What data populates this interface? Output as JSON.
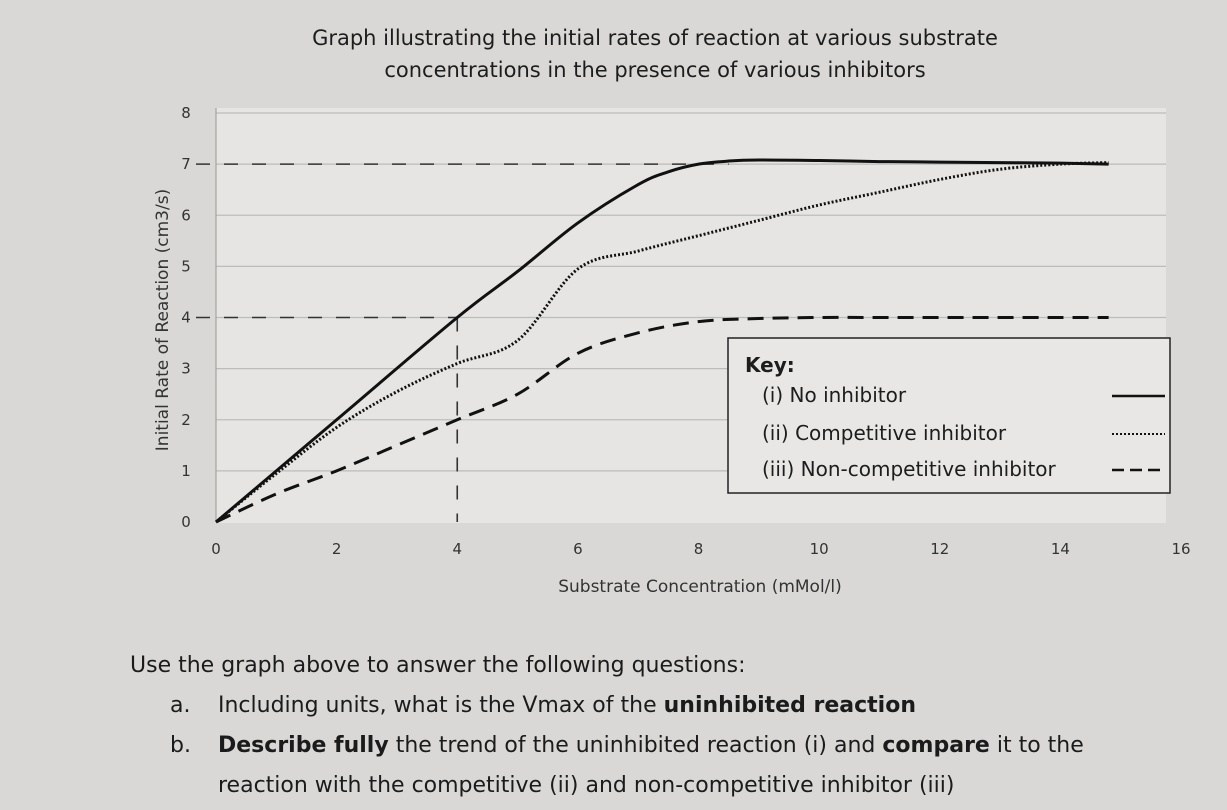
{
  "chart_data": {
    "type": "line",
    "title_line1": "Graph illustrating the initial rates of reaction at various substrate",
    "title_line2": "concentrations in the presence of various inhibitors",
    "xlabel": "Substrate Concentration (mMol/l)",
    "ylabel": "Initial Rate of Reaction (cm3/s)",
    "xlim": [
      0,
      16
    ],
    "ylim": [
      0,
      8
    ],
    "x_ticks": [
      "0",
      "2",
      "4",
      "6",
      "8",
      "10",
      "12",
      "14",
      "16"
    ],
    "y_ticks": [
      "0",
      "1",
      "2",
      "3",
      "4",
      "5",
      "6",
      "7",
      "8"
    ],
    "grid": "horizontal",
    "legend_position": "right",
    "key_title": "Key:",
    "series": [
      {
        "name": "(i) No inhibitor",
        "style": "solid",
        "x": [
          0,
          2,
          4,
          5,
          6,
          7,
          7.5,
          8,
          8.5,
          9,
          10,
          11,
          12,
          13,
          14,
          14.8
        ],
        "y": [
          0,
          2.0,
          4.0,
          4.9,
          5.85,
          6.6,
          6.85,
          7.0,
          7.06,
          7.08,
          7.07,
          7.05,
          7.04,
          7.03,
          7.02,
          7.0
        ]
      },
      {
        "name": "(ii) Competitive inhibitor",
        "style": "dotted",
        "x": [
          0,
          1,
          2,
          3,
          4,
          5,
          6,
          7,
          8,
          9,
          10,
          11,
          12,
          13,
          14,
          14.8
        ],
        "y": [
          0,
          0.95,
          1.85,
          2.55,
          3.1,
          3.55,
          4.95,
          5.3,
          5.6,
          5.9,
          6.2,
          6.45,
          6.7,
          6.9,
          7.0,
          7.03
        ]
      },
      {
        "name": "(iii) Non-competitive inhibitor",
        "style": "dashed",
        "x": [
          0,
          1,
          2,
          3,
          4,
          5,
          6,
          7,
          8,
          9,
          10,
          11,
          12,
          13,
          14,
          14.8
        ],
        "y": [
          0,
          0.55,
          1.0,
          1.5,
          2.0,
          2.5,
          3.3,
          3.7,
          3.92,
          3.98,
          4.0,
          4.0,
          4.0,
          4.0,
          4.0,
          4.0
        ]
      }
    ],
    "reference_lines": [
      {
        "type": "horizontal",
        "y": 7,
        "style": "dashed"
      },
      {
        "type": "horizontal",
        "y": 4,
        "style": "dashed"
      },
      {
        "type": "vertical",
        "x": 4,
        "style": "dashed"
      }
    ]
  },
  "questions": {
    "intro": "Use the graph above to answer the following questions:",
    "a_letter": "a.",
    "a_text": "Including units, what is the Vmax of the",
    "a_bold": "uninhibited reaction",
    "b_letter": "b.",
    "b_bold1": "Describe fully",
    "b_text1": "the trend of the uninhibited reaction (i) and",
    "b_bold2": "compare",
    "b_text2": "it to the",
    "b_text3": "reaction with the competitive (ii) and non-competitive inhibitor (iii)"
  },
  "colors": {
    "background": "#d9d8d6",
    "plot_area": "#e6e5e3",
    "gridline": "#bdbcba",
    "line": "#111111"
  }
}
